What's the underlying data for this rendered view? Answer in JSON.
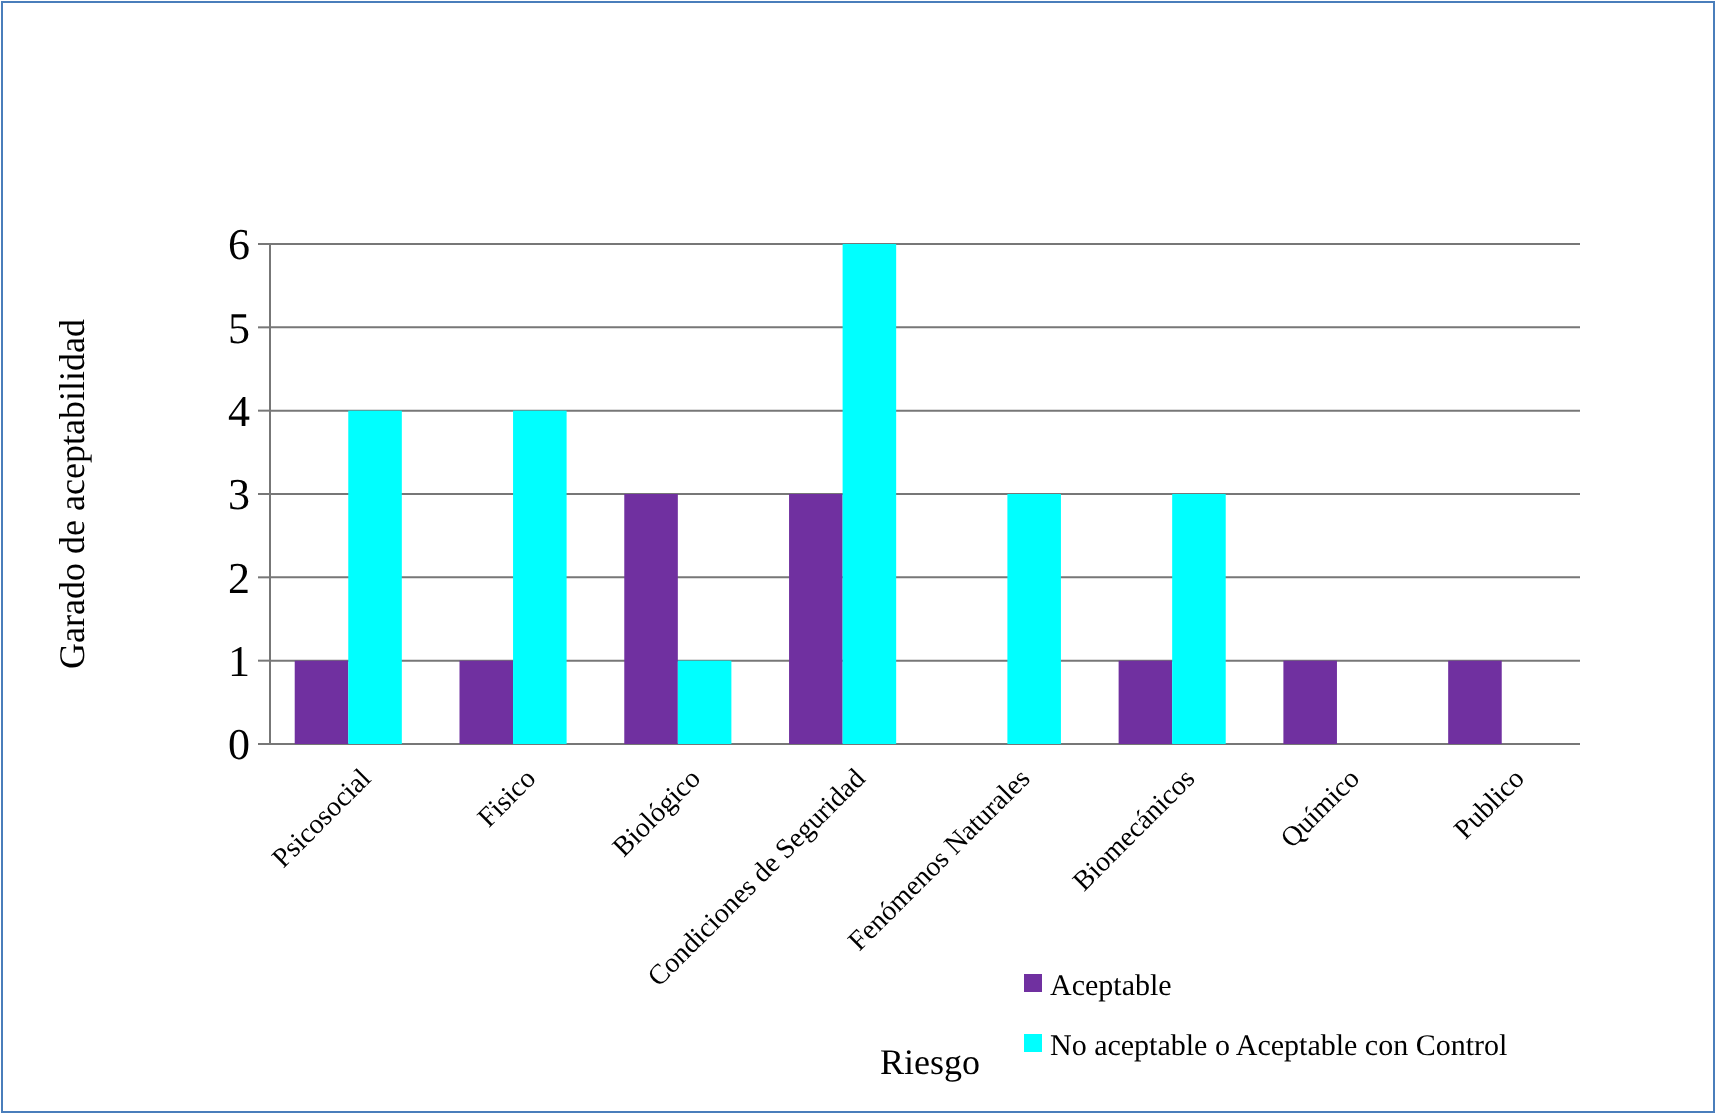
{
  "chart_data": {
    "type": "bar",
    "xlabel": "Riesgo",
    "ylabel": "Garado de aceptabilidad",
    "categories": [
      "Psicosocial",
      "Fisico",
      "Biológico",
      "Condiciones de Seguridad",
      "Fenómenos Naturales",
      "Biomecánicos",
      "Químico",
      "Publico"
    ],
    "series": [
      {
        "name": "Aceptable",
        "color": "#7030a0",
        "values": [
          1,
          1,
          3,
          3,
          0,
          1,
          1,
          1
        ]
      },
      {
        "name": "No aceptable o Aceptable con Control",
        "color": "#00ffff",
        "values": [
          4,
          4,
          1,
          6,
          3,
          3,
          0,
          0
        ]
      }
    ],
    "ylim": [
      0,
      6
    ],
    "yticks": [
      0,
      1,
      2,
      3,
      4,
      5,
      6
    ],
    "grid": "y",
    "legend": "bottom right"
  }
}
